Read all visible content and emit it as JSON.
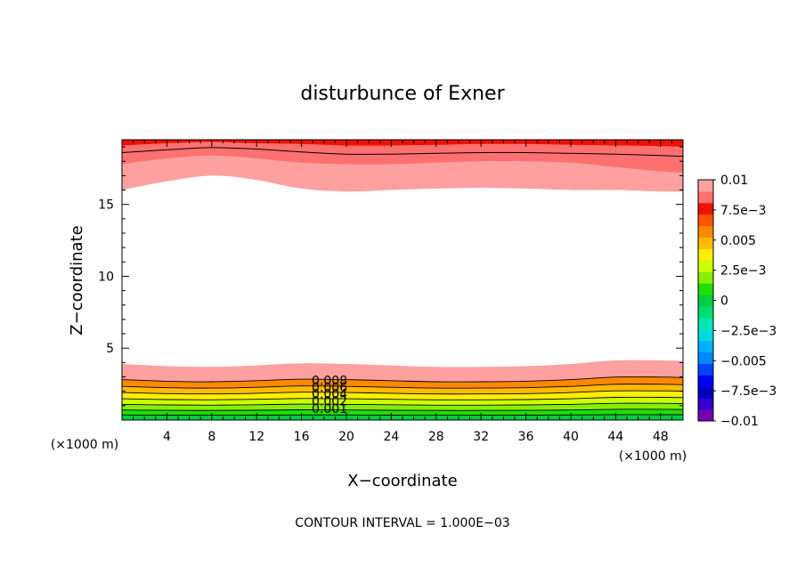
{
  "chart_data": {
    "type": "heatmap",
    "title": "disturbunce of Exner",
    "xlabel": "X−coordinate",
    "ylabel": "Z−coordinate",
    "x_unit": "(×1000 m)",
    "y_unit": "(×1000 m)",
    "xlim": [
      0,
      50
    ],
    "ylim": [
      0,
      19.5
    ],
    "xticks": [
      4,
      8,
      12,
      16,
      20,
      24,
      28,
      32,
      36,
      40,
      44,
      48
    ],
    "yticks": [
      5,
      10,
      15
    ],
    "contour_interval_text": "CONTOUR INTERVAL = 1.000E−03",
    "contour_labels": [
      "0.008",
      "0.006",
      "0.004",
      "0.002",
      "0.001"
    ],
    "colorbar": {
      "ticks": [
        "0.01",
        "7.5e−3",
        "0.005",
        "2.5e−3",
        "0",
        "−2.5e−3",
        "−0.005",
        "−7.5e−3",
        "−0.01"
      ],
      "levels": [
        -0.01,
        -0.009,
        -0.008,
        -0.007,
        -0.006,
        -0.005,
        -0.004,
        -0.003,
        -0.002,
        -0.001,
        0,
        0.001,
        0.002,
        0.003,
        0.004,
        0.005,
        0.006,
        0.007,
        0.008,
        0.009,
        0.01
      ],
      "colors": [
        "#7700b3",
        "#3300cc",
        "#0000c0",
        "#0000ff",
        "#0044ff",
        "#0088ff",
        "#00b0ff",
        "#00d8e0",
        "#00e8b0",
        "#00dd70",
        "#00cc44",
        "#22dd00",
        "#88ee00",
        "#ccff00",
        "#ffee00",
        "#ffbb00",
        "#ff8800",
        "#ff5500",
        "#ee1100",
        "#ff7070",
        "#ffa0a0"
      ]
    },
    "bottom_layer": {
      "x": [
        0,
        4,
        8,
        12,
        16,
        20,
        24,
        28,
        32,
        36,
        40,
        44,
        48,
        50
      ],
      "top_z": [
        3.9,
        3.75,
        3.7,
        3.8,
        3.95,
        3.9,
        3.8,
        3.7,
        3.7,
        3.75,
        3.9,
        4.15,
        4.15,
        4.1
      ],
      "bands": [
        0.007,
        0.006,
        0.005,
        0.004,
        0.003,
        0.002,
        0.001,
        0.0005
      ]
    },
    "top_band_boundaries": {
      "x": [
        0,
        4,
        8,
        12,
        16,
        20,
        24,
        28,
        32,
        36,
        40,
        44,
        48,
        50
      ],
      "z_inner": [
        16.0,
        16.6,
        17.0,
        16.7,
        16.1,
        15.9,
        16.0,
        16.1,
        16.15,
        16.1,
        16.0,
        16.0,
        15.9,
        15.9
      ],
      "z_mid": [
        17.8,
        18.2,
        18.4,
        18.2,
        17.9,
        17.8,
        17.8,
        17.9,
        18.0,
        18.0,
        17.9,
        17.6,
        17.3,
        17.2
      ],
      "z_line": [
        18.6,
        18.8,
        18.95,
        18.85,
        18.65,
        18.5,
        18.5,
        18.55,
        18.6,
        18.6,
        18.55,
        18.5,
        18.4,
        18.35
      ],
      "z_outer": [
        19.1,
        19.25,
        19.35,
        19.25,
        19.2,
        19.1,
        19.1,
        19.15,
        19.2,
        19.2,
        19.15,
        19.1,
        19.05,
        19.0
      ]
    }
  }
}
